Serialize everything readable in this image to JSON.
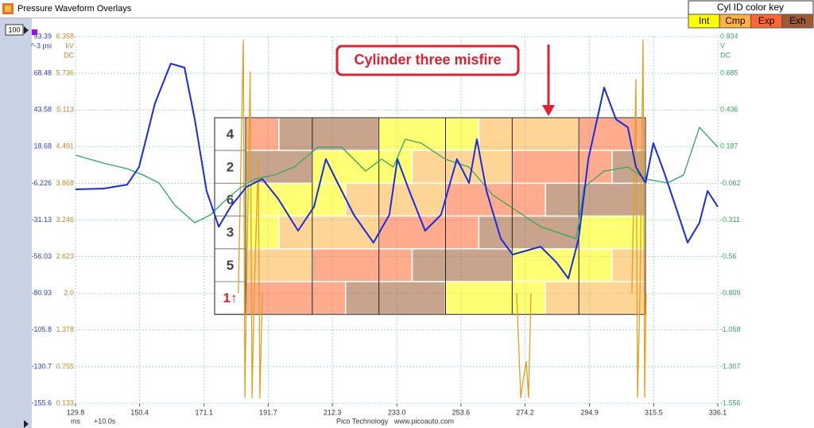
{
  "window": {
    "title": "Pressure Waveform Overlays",
    "zoom": "100"
  },
  "color_key": {
    "title": "Cyl ID color key",
    "entries": [
      "Int",
      "Cmp",
      "Exp",
      "Exh"
    ],
    "colors": [
      "#ffff00",
      "#ffb23f",
      "#ff6630",
      "#9c5a30"
    ]
  },
  "annotation": "Cylinder three misfire",
  "overlay": {
    "rows": [
      "4",
      "2",
      "6",
      "3",
      "5",
      "1↑"
    ]
  },
  "footer": {
    "x_unit": "ms",
    "offset": "+10.0s",
    "credit": "Pico Technology   www.picoauto.com"
  },
  "chart_data": {
    "type": "line",
    "xlim": [
      129.8,
      336.1
    ],
    "xticks": [
      129.8,
      150.4,
      171.1,
      191.7,
      212.3,
      {
        "value": 233.0,
        "label": "233.0"
      },
      253.6,
      274.2,
      294.9,
      315.5,
      336.1
    ],
    "grid": true,
    "axes": [
      {
        "unit": "^-3 psi",
        "color": "#2b3fd6",
        "ylim": [
          -155.6,
          93.39
        ],
        "yticks": [
          -155.6,
          -130.7,
          -105.8,
          -80.93,
          -56.03,
          -31.13,
          -6.226,
          18.68,
          43.58,
          68.48,
          93.39
        ]
      },
      {
        "unit": "kV",
        "coupling": "DC",
        "color": "#c08a2a",
        "ylim": [
          0.133,
          6.358
        ],
        "yticks": [
          0.133,
          0.755,
          1.378,
          {
            "value": 2.0,
            "label": "2.0"
          },
          2.623,
          3.246,
          3.868,
          4.491,
          5.113,
          5.736,
          6.358
        ]
      },
      {
        "unit": "V",
        "coupling": "DC",
        "color": "#2fa860",
        "ylim": [
          -1.556,
          0.934
        ],
        "yticks": [
          -1.556,
          -1.307,
          -1.058,
          -0.809,
          -0.56,
          -0.311,
          -0.062,
          0.187,
          0.436,
          0.685,
          0.934
        ]
      }
    ],
    "series": [
      {
        "axis": 1,
        "color": "#e0a020",
        "x": [
          182.1,
          183.7,
          184.2,
          184.7,
          185.9,
          186.5,
          187.2,
          188.5,
          189.0,
          189.8,
          230.0,
          271.5,
          272.8,
          273.5,
          274.6,
          275.3,
          276.1,
          290.0,
          308.5,
          309.8,
          310.3,
          311.1,
          312.1,
          312.6,
          313.1
        ],
        "values": [
          2.0,
          6.3,
          0.23,
          2.0,
          5.76,
          0.23,
          2.0,
          4.28,
          0.23,
          2.0,
          null,
          2.0,
          0.23,
          0.5,
          0.84,
          0.23,
          2.0,
          null,
          2.0,
          5.63,
          0.23,
          2.0,
          6.3,
          0.23,
          2.0
        ]
      },
      {
        "axis": 2,
        "color": "#2fa860",
        "x": [
          129.8,
          138.7,
          146.4,
          151.5,
          156.6,
          161.7,
          168.1,
          173.2,
          177.0,
          182.1,
          187.3,
          193.6,
          200.0,
          207.7,
          215.3,
          223.0,
          228.1,
          231.9,
          235.7,
          240.9,
          248.5,
          256.2,
          263.8,
          271.5,
          279.2,
          286.8,
          290.6,
          293.2,
          299.6,
          307.2,
          312.9,
          320.0,
          325.1,
          330.2,
          336.1
        ],
        "values": [
          0.129,
          0.075,
          0.037,
          -0.006,
          -0.06,
          -0.211,
          -0.33,
          -0.276,
          -0.195,
          -0.103,
          -0.033,
          -0.006,
          0.048,
          0.183,
          0.183,
          0.021,
          0.102,
          0.048,
          0.237,
          0.21,
          0.102,
          0.048,
          -0.141,
          -0.249,
          -0.357,
          -0.411,
          -0.438,
          -0.087,
          0.021,
          0.048,
          -0.033,
          -0.06,
          -0.006,
          0.318,
          0.183
        ]
      },
      {
        "axis": 0,
        "color": "#1a2be0",
        "x": [
          129.8,
          138.7,
          146.4,
          150.2,
          155.3,
          160.4,
          164.8,
          168.1,
          171.9,
          175.8,
          179.6,
          184.7,
          189.8,
          194.9,
          201.3,
          206.4,
          210.2,
          214.0,
          219.2,
          225.5,
          230.6,
          233.2,
          237.0,
          242.1,
          247.2,
          252.3,
          256.2,
          258.7,
          261.8,
          266.4,
          270.2,
          279.2,
          284.3,
          288.1,
          291.4,
          294.5,
          299.6,
          303.4,
          307.2,
          309.8,
          312.9,
          315.4,
          318.7,
          322.6,
          326.4,
          330.2,
          332.8,
          336.1
        ],
        "values": [
          -10.3,
          -9.8,
          -7.1,
          4.8,
          48.0,
          75.0,
          72.3,
          37.2,
          -11.4,
          -35.7,
          -22.2,
          -8.7,
          -3.3,
          -16.8,
          -38.4,
          -22.2,
          10.2,
          -6.0,
          -27.6,
          -46.5,
          -27.6,
          10.2,
          -11.4,
          -38.4,
          -27.6,
          10.2,
          -6.0,
          23.7,
          -11.4,
          -43.8,
          -54.6,
          -49.2,
          -60.0,
          -70.8,
          -43.8,
          10.2,
          58.8,
          37.2,
          31.8,
          4.8,
          -6.0,
          21.0,
          2.1,
          -22.2,
          -46.5,
          -33.0,
          -11.4,
          -22.2
        ]
      }
    ]
  }
}
